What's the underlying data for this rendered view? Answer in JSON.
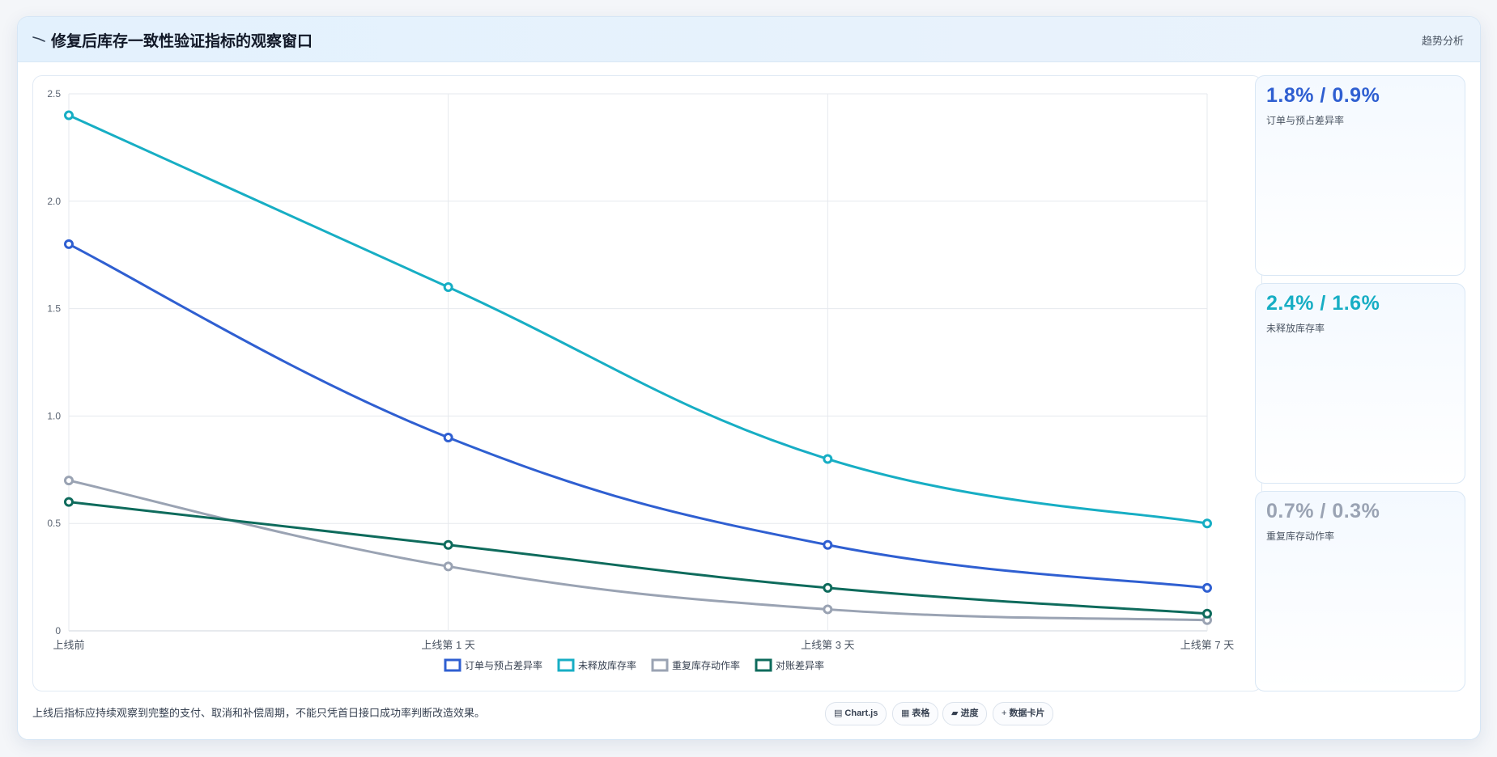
{
  "header": {
    "title": "修复后库存一致性验证指标的观察窗口",
    "link_label": "趋势分析"
  },
  "chart_data": {
    "type": "line",
    "categories": [
      "上线前",
      "上线第 1 天",
      "上线第 3 天",
      "上线第 7 天"
    ],
    "ylim": [
      0,
      2.5
    ],
    "yticks": [
      "0",
      "0.5",
      "1.0",
      "1.5",
      "2.0",
      "2.5"
    ],
    "grid": true,
    "legend_position": "bottom",
    "series": [
      {
        "name": "订单与预占差异率",
        "values": [
          1.8,
          0.9,
          0.4,
          0.2
        ],
        "color": "#2f5fd1"
      },
      {
        "name": "未释放库存率",
        "values": [
          2.4,
          1.6,
          0.8,
          0.5
        ],
        "color": "#17aec4"
      },
      {
        "name": "重复库存动作率",
        "values": [
          0.7,
          0.3,
          0.1,
          0.05
        ],
        "color": "#9aa3b3"
      },
      {
        "name": "对账差异率",
        "values": [
          0.6,
          0.4,
          0.2,
          0.08
        ],
        "color": "#0e6b5c"
      }
    ]
  },
  "stats": [
    {
      "value": "1.8% / 0.9%",
      "label": "订单与预占差异率",
      "color": "#2f5fd1"
    },
    {
      "value": "2.4% / 1.6%",
      "label": "未释放库存率",
      "color": "#17aec4"
    },
    {
      "value": "0.7% / 0.3%",
      "label": "重复库存动作率",
      "color": "#9aa3b3"
    }
  ],
  "footer": {
    "note": "上线后指标应持续观察到完整的支付、取消和补偿周期，不能只凭首日接口成功率判断改造效果。",
    "pills": [
      {
        "icon": "chart-icon",
        "label": "Chart.js"
      },
      {
        "icon": "table-icon",
        "label": "表格"
      },
      {
        "icon": "folder-icon",
        "label": "进度"
      },
      {
        "icon": "plus-icon",
        "label": "数据卡片"
      }
    ]
  }
}
